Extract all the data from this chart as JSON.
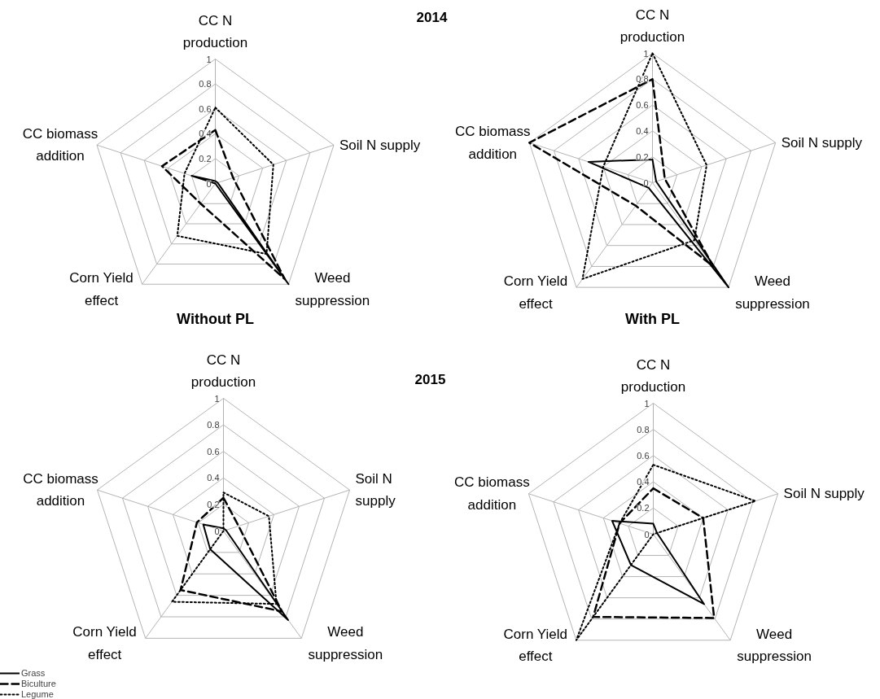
{
  "chart_data": [
    {
      "type": "radar",
      "title": "2014",
      "subtitle": "Without PL",
      "categories": [
        "CC N\nproduction",
        "Soil N supply",
        "Weed\nsuppression",
        "Corn Yield\neffect",
        "CC biomass\naddition"
      ],
      "ylim": [
        0,
        1
      ],
      "yticks": [
        0,
        0.2,
        0.4,
        0.6,
        0.8,
        1
      ],
      "grid": true,
      "series": [
        {
          "color": "#000000",
          "line_style": "solid",
          "values": [
            0.02,
            0.02,
            1.0,
            0.0,
            0.2
          ]
        },
        {
          "color": "#000000",
          "line_style": "dashed",
          "values": [
            0.43,
            0.15,
            0.95,
            0.2,
            0.45
          ]
        },
        {
          "color": "#000000",
          "line_style": "dotted",
          "values": [
            0.61,
            0.49,
            0.7,
            0.52,
            0.26
          ]
        }
      ]
    },
    {
      "type": "radar",
      "subtitle": "With PL",
      "categories": [
        "CC N\nproduction",
        "Soil N supply",
        "Weed\nsuppression",
        "Corn Yield\neffect",
        "CC biomass\naddition"
      ],
      "ylim": [
        0,
        1
      ],
      "yticks": [
        0,
        0.2,
        0.4,
        0.6,
        0.8,
        1
      ],
      "grid": true,
      "series": [
        {
          "color": "#000000",
          "line_style": "solid",
          "values": [
            0.18,
            0.03,
            1.0,
            0.05,
            0.52
          ]
        },
        {
          "color": "#000000",
          "line_style": "dashed",
          "values": [
            0.8,
            0.1,
            0.8,
            0.22,
            1.0
          ]
        },
        {
          "color": "#000000",
          "line_style": "dotted",
          "values": [
            1.0,
            0.44,
            0.55,
            0.92,
            0.4
          ]
        }
      ]
    },
    {
      "type": "radar",
      "title": "2015",
      "categories": [
        "CC N\nproduction",
        "Soil N\nsupply",
        "Weed\nsuppression",
        "Corn Yield\neffect",
        "CC biomass\naddition"
      ],
      "ylim": [
        0,
        1
      ],
      "yticks": [
        0,
        0.2,
        0.4,
        0.6,
        0.8,
        1
      ],
      "grid": true,
      "legend": "bottom left",
      "series": [
        {
          "name": "Grass",
          "color": "#000000",
          "line_style": "solid",
          "values": [
            0.02,
            0.02,
            0.83,
            0.17,
            0.16
          ]
        },
        {
          "name": "Biculture",
          "color": "#000000",
          "line_style": "dashed",
          "values": [
            0.25,
            0.12,
            0.75,
            0.55,
            0.21
          ]
        },
        {
          "name": "Legume",
          "color": "#000000",
          "line_style": "dotted",
          "values": [
            0.29,
            0.36,
            0.68,
            0.66,
            0.0
          ]
        }
      ]
    },
    {
      "type": "radar",
      "categories": [
        "CC N\nproduction",
        "Soil N supply",
        "Weed\nsuppression",
        "Corn Yield\neffect",
        "CC biomass\naddition"
      ],
      "ylim": [
        0,
        1
      ],
      "yticks": [
        0,
        0.2,
        0.4,
        0.6,
        0.8,
        1
      ],
      "grid": true,
      "series": [
        {
          "color": "#000000",
          "line_style": "solid",
          "values": [
            0.08,
            0.03,
            0.66,
            0.29,
            0.33
          ]
        },
        {
          "color": "#000000",
          "line_style": "dashed",
          "values": [
            0.35,
            0.4,
            0.79,
            0.78,
            0.27
          ]
        },
        {
          "color": "#000000",
          "line_style": "dotted",
          "values": [
            0.53,
            0.82,
            0.0,
            1.0,
            0.27
          ]
        }
      ]
    }
  ]
}
